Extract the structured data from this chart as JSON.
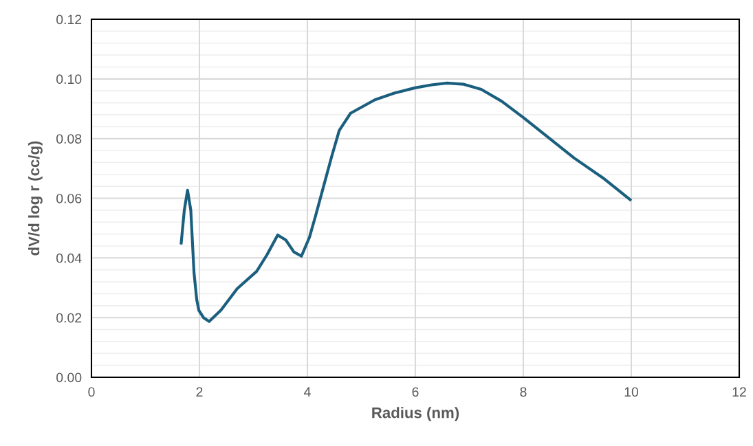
{
  "chart_data": {
    "type": "line",
    "xlabel": "Radius (nm)",
    "ylabel": "dV/d log r (cc/g)",
    "series": [
      {
        "color": "#1b5f7f",
        "x": [
          1.66,
          1.72,
          1.78,
          1.84,
          1.9,
          1.95,
          1.99,
          2.08,
          2.18,
          2.4,
          2.7,
          3.06,
          3.25,
          3.45,
          3.6,
          3.75,
          3.89,
          4.04,
          4.15,
          4.3,
          4.45,
          4.59,
          4.8,
          5.25,
          5.6,
          5.99,
          6.3,
          6.59,
          6.9,
          7.22,
          7.6,
          8.01,
          8.94,
          9.5,
          10.0
        ],
        "values": [
          0.0445,
          0.056,
          0.0627,
          0.056,
          0.035,
          0.026,
          0.0224,
          0.0199,
          0.0187,
          0.0225,
          0.0297,
          0.0355,
          0.041,
          0.0477,
          0.046,
          0.042,
          0.0406,
          0.047,
          0.054,
          0.064,
          0.074,
          0.0827,
          0.0885,
          0.093,
          0.0952,
          0.097,
          0.098,
          0.0986,
          0.0982,
          0.0965,
          0.0925,
          0.0869,
          0.0735,
          0.0665,
          0.0592
        ]
      }
    ],
    "xlim": [
      0,
      12
    ],
    "xticks": [
      0,
      2,
      4,
      6,
      8,
      10,
      12
    ],
    "ylim": [
      0,
      0.12
    ],
    "yticks": [
      {
        "value": 0,
        "label": "0.00"
      },
      {
        "value": 0.02,
        "label": "0.02"
      },
      {
        "value": 0.04,
        "label": "0.04"
      },
      {
        "value": 0.06,
        "label": "0.06"
      },
      {
        "value": 0.08,
        "label": "0.08"
      },
      {
        "value": 0.1,
        "label": "0.10"
      },
      {
        "value": 0.12,
        "label": "0.12"
      }
    ],
    "grid": true,
    "marker": "none",
    "line_style": "solid"
  }
}
